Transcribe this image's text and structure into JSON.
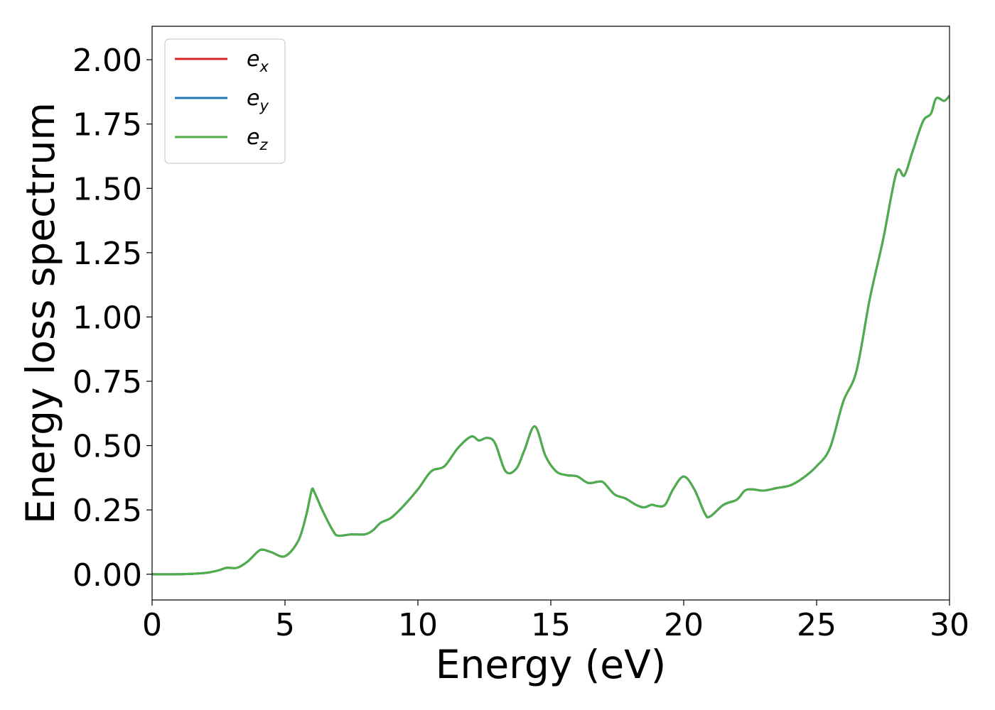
{
  "chart_data": {
    "type": "line",
    "xlabel": "Energy (eV)",
    "ylabel": "Energy loss spectrum",
    "xlim": [
      0,
      30
    ],
    "ylim": [
      -0.1,
      2.13
    ],
    "xticks": [
      0,
      5,
      10,
      15,
      20,
      25,
      30
    ],
    "xtick_labels": [
      "0",
      "5",
      "10",
      "15",
      "20",
      "25",
      "30"
    ],
    "yticks": [
      0,
      0.25,
      0.5,
      0.75,
      1.0,
      1.25,
      1.5,
      1.75,
      2.0
    ],
    "ytick_labels": [
      "0.00",
      "0.25",
      "0.50",
      "0.75",
      "1.00",
      "1.25",
      "1.50",
      "1.75",
      "2.00"
    ],
    "grid": false,
    "legend_position": "top-left",
    "series": [
      {
        "name": "e_x",
        "label_base": "e",
        "label_sub": "x",
        "color": "#d62728"
      },
      {
        "name": "e_y",
        "label_base": "e",
        "label_sub": "y",
        "color": "#1f77b4"
      },
      {
        "name": "e_z",
        "label_base": "e",
        "label_sub": "z",
        "color": "#4daf4a"
      }
    ],
    "x": [
      0,
      1,
      2,
      2.5,
      2.8,
      3.2,
      3.6,
      4.0,
      4.2,
      4.5,
      5.0,
      5.5,
      5.8,
      6.0,
      6.1,
      6.4,
      6.8,
      7.0,
      7.5,
      8.0,
      8.3,
      8.6,
      9.0,
      9.5,
      10.0,
      10.5,
      11.0,
      11.5,
      12.0,
      12.3,
      12.6,
      12.9,
      13.3,
      13.7,
      14.0,
      14.4,
      14.8,
      15.2,
      15.6,
      16.0,
      16.4,
      16.8,
      17.0,
      17.4,
      17.8,
      18.2,
      18.5,
      18.8,
      19.0,
      19.3,
      19.6,
      20.0,
      20.4,
      20.8,
      21.0,
      21.5,
      22.0,
      22.3,
      22.6,
      23.0,
      23.5,
      24.0,
      24.5,
      25.0,
      25.5,
      26.0,
      26.5,
      27.0,
      27.5,
      28.0,
      28.3,
      28.6,
      29.0,
      29.3,
      29.5,
      29.8,
      30.0
    ],
    "y": [
      0.0,
      0.0,
      0.005,
      0.015,
      0.025,
      0.025,
      0.05,
      0.09,
      0.095,
      0.085,
      0.07,
      0.13,
      0.23,
      0.325,
      0.32,
      0.25,
      0.17,
      0.15,
      0.155,
      0.155,
      0.17,
      0.2,
      0.22,
      0.27,
      0.33,
      0.4,
      0.42,
      0.49,
      0.535,
      0.52,
      0.53,
      0.51,
      0.4,
      0.41,
      0.48,
      0.575,
      0.46,
      0.4,
      0.385,
      0.38,
      0.355,
      0.36,
      0.355,
      0.31,
      0.295,
      0.27,
      0.26,
      0.27,
      0.265,
      0.27,
      0.33,
      0.38,
      0.33,
      0.235,
      0.225,
      0.27,
      0.29,
      0.325,
      0.33,
      0.325,
      0.335,
      0.345,
      0.375,
      0.42,
      0.49,
      0.67,
      0.79,
      1.07,
      1.3,
      1.56,
      1.55,
      1.64,
      1.76,
      1.79,
      1.85,
      1.84,
      1.86
    ]
  }
}
